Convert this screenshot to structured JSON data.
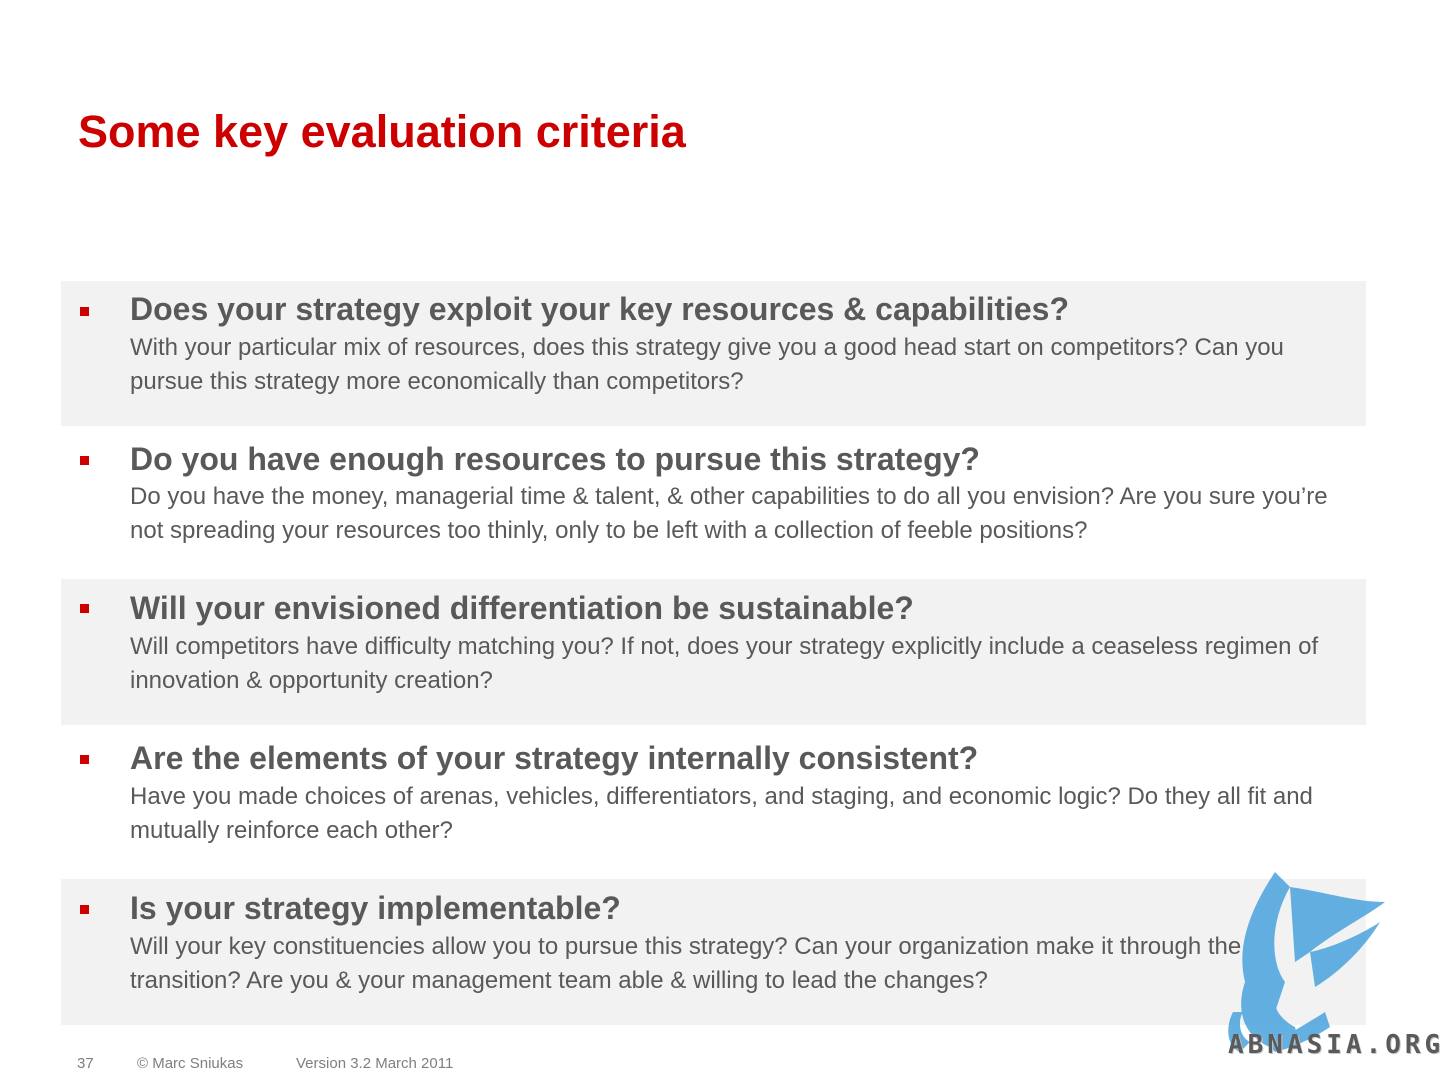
{
  "slide": {
    "title": "Some key evaluation criteria",
    "bullet_color": "#cc0000",
    "criteria": [
      {
        "heading": "Does your strategy exploit your key resources & capabilities?",
        "text": "With your particular mix of resources, does this strategy give you a good head start on competitors? Can you pursue this strategy more economically than competitors?"
      },
      {
        "heading": "Do you have enough resources to pursue this strategy?",
        "text": "Do you have the money, managerial time & talent, & other capabilities to do all you envision? Are you sure you’re not spreading your resources too thinly, only to be left with a collection of feeble positions?"
      },
      {
        "heading": "Will your envisioned differentiation be sustainable?",
        "text": "Will competitors have difficulty matching you? If not, does your strategy explicitly include a ceaseless regimen of innovation & opportunity creation?"
      },
      {
        "heading": "Are the elements of your strategy internally consistent?",
        "text": "Have you made choices of arenas, vehicles, differentiators, and staging, and economic logic? Do they all fit and mutually reinforce each other?"
      },
      {
        "heading": "Is your strategy implementable?",
        "text": "Will your key constituencies allow you to pursue this strategy? Can your organization make it through the transition? Are you & your management team able & willing to lead the changes?"
      }
    ]
  },
  "footer": {
    "page_number": "37",
    "copyright": "© Marc Sniukas",
    "version": "Version 3.2 March 2011"
  },
  "watermark": {
    "text": "ABNASIA.ORG",
    "icon": "griffin-icon",
    "color": "#4aa3df"
  }
}
